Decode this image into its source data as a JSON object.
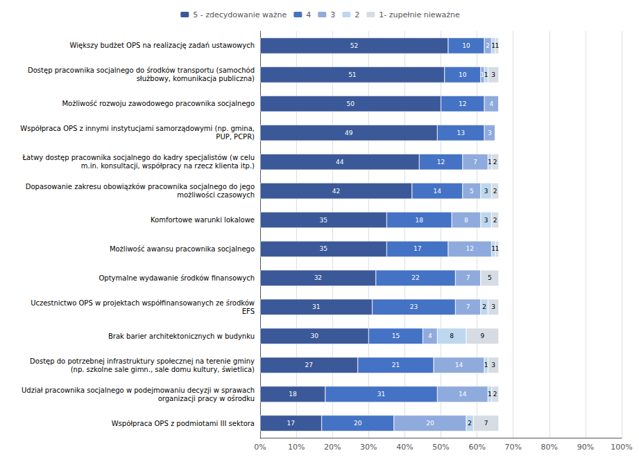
{
  "chart_data": {
    "type": "bar",
    "orientation": "horizontal",
    "stacked": true,
    "data_labels": true,
    "grid": true,
    "legend": "top",
    "categories": [
      "Większy budżet OPS na realizację zadań ustawowych",
      "Dostęp pracownika socjalnego do środków transportu (samochód\nsłużbowy, komunikacja publiczna)",
      "Możliwość rozwoju zawodowego pracownika socjalnego",
      "Współpraca OPS z innymi instytucjami samorządowymi (np. gmina,\nPUP, PCPR)",
      "Łatwy dostęp pracownika socjalnego do kadry specjalistów (w celu\nm.in. konsultacji, współpracy na rzecz klienta itp.)",
      "Dopasowanie zakresu obowiązków pracownika socjalnego do jego\nmożliwości czasowych",
      "Komfortowe warunki lokalowe",
      "Możliwość awansu pracownika socjalnego",
      "Optymalne wydawanie środków finansowych",
      "Uczestnictwo OPS w projektach współfinansowanych ze środków\nEFS",
      "Brak barier architektonicznych w budynku",
      "Dostęp do potrzebnej infrastruktury społecznej na terenie gminy\n(np. szkolne sale gimn., sale domu kultury, świetlica)",
      "Udział pracownika socjalnego w podejmowaniu decyzji w sprawach\norganizacji pracy w ośrodku",
      "Współpraca OPS z podmiotami III sektora"
    ],
    "series": [
      {
        "name": "5 - zdecydowanie ważne",
        "color": "#3B5998",
        "values": [
          52,
          51,
          50,
          49,
          44,
          42,
          35,
          35,
          32,
          31,
          30,
          27,
          18,
          17
        ]
      },
      {
        "name": "4",
        "color": "#4472C4",
        "values": [
          10,
          10,
          12,
          13,
          12,
          14,
          18,
          17,
          22,
          23,
          15,
          21,
          31,
          20
        ]
      },
      {
        "name": "3",
        "color": "#8FAADC",
        "values": [
          2,
          1,
          4,
          3,
          7,
          5,
          8,
          12,
          7,
          7,
          4,
          14,
          14,
          20
        ]
      },
      {
        "name": "2",
        "color": "#BDD7EE",
        "values": [
          1,
          1,
          0,
          0,
          1,
          3,
          3,
          1,
          0,
          2,
          8,
          1,
          1,
          2
        ]
      },
      {
        "name": "1- zupełnie nieważne",
        "color": "#D6DCE4",
        "values": [
          1,
          3,
          0,
          0,
          2,
          2,
          2,
          1,
          5,
          3,
          9,
          3,
          2,
          7
        ]
      }
    ],
    "xlim": [
      0,
      100
    ],
    "xticks": [
      {
        "value": 0,
        "label": "0%"
      },
      {
        "value": 10,
        "label": "10%"
      },
      {
        "value": 20,
        "label": "20%"
      },
      {
        "value": 30,
        "label": "30%"
      },
      {
        "value": 40,
        "label": "40%"
      },
      {
        "value": 50,
        "label": "50%"
      },
      {
        "value": 60,
        "label": "60%"
      },
      {
        "value": 70,
        "label": "70%"
      },
      {
        "value": 80,
        "label": "80%"
      },
      {
        "value": 90,
        "label": "90%"
      },
      {
        "value": 100,
        "label": "100%"
      }
    ]
  }
}
